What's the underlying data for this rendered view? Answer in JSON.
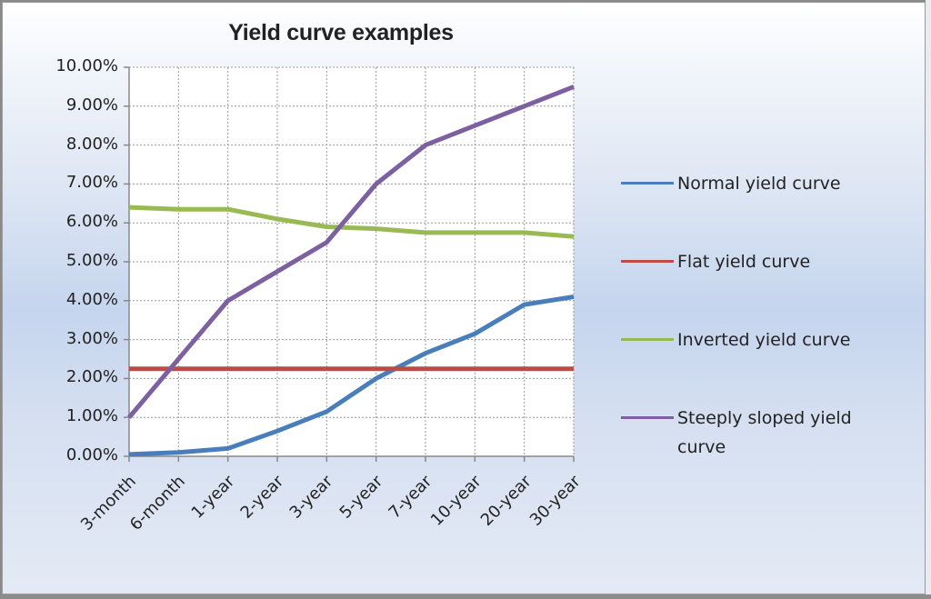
{
  "chart_data": {
    "type": "line",
    "title": "Yield curve examples",
    "xlabel": "",
    "ylabel": "",
    "categories": [
      "3-month",
      "6-month",
      "1-year",
      "2-year",
      "3-year",
      "5-year",
      "7-year",
      "10-year",
      "20-year",
      "30-year"
    ],
    "ylim": [
      0,
      10
    ],
    "yticks": [
      "0.00%",
      "1.00%",
      "2.00%",
      "3.00%",
      "4.00%",
      "5.00%",
      "6.00%",
      "7.00%",
      "8.00%",
      "9.00%",
      "10.00%"
    ],
    "grid": true,
    "legend_position": "right",
    "series": [
      {
        "name": "Normal yield curve",
        "color": "#4a7ebb",
        "values": [
          0.05,
          0.1,
          0.2,
          0.65,
          1.15,
          2.0,
          2.65,
          3.15,
          3.9,
          4.1
        ]
      },
      {
        "name": "Flat yield curve",
        "color": "#be4b48",
        "values": [
          2.25,
          2.25,
          2.25,
          2.25,
          2.25,
          2.25,
          2.25,
          2.25,
          2.25,
          2.25
        ]
      },
      {
        "name": "Inverted yield curve",
        "color": "#98b954",
        "values": [
          6.4,
          6.35,
          6.35,
          6.1,
          5.9,
          5.85,
          5.75,
          5.75,
          5.75,
          5.65
        ]
      },
      {
        "name": "Steeply sloped yield curve",
        "color": "#7d60a0",
        "values": [
          1.0,
          2.5,
          4.0,
          4.75,
          5.5,
          7.0,
          8.0,
          8.5,
          9.0,
          9.5
        ]
      }
    ]
  }
}
